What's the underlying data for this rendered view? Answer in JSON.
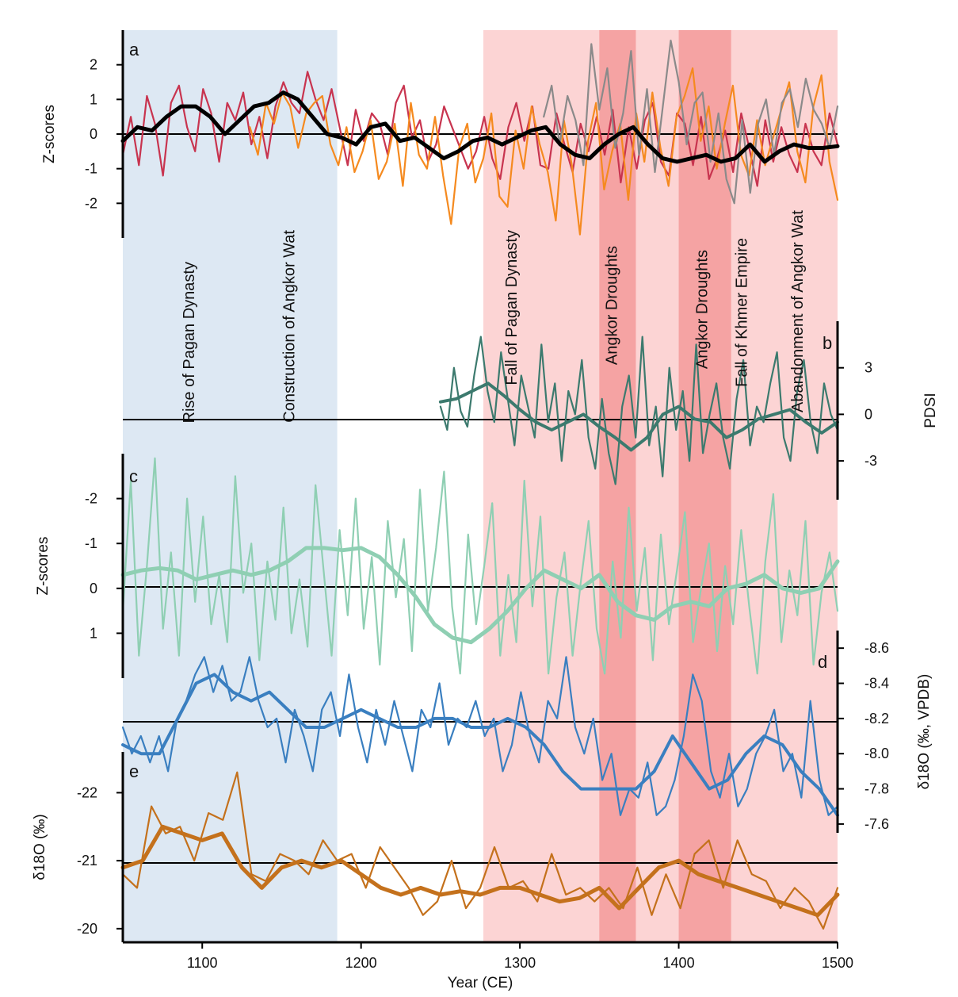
{
  "chart_data": {
    "type": "line",
    "x_axis": {
      "label": "Year (CE)",
      "range": [
        1050,
        1500
      ],
      "ticks": [
        1100,
        1200,
        1300,
        1400,
        1500
      ]
    },
    "shaded_periods": [
      {
        "start": 1050,
        "end": 1185,
        "color": "#dde8f3"
      },
      {
        "start": 1277,
        "end": 1500,
        "color": "#fcd4d4"
      },
      {
        "start": 1350,
        "end": 1373,
        "color": "#f5a3a3"
      },
      {
        "start": 1400,
        "end": 1433,
        "color": "#f5a3a3"
      }
    ],
    "events": [
      {
        "label": "Rise of Pagan Dynasty",
        "year": 1095
      },
      {
        "label": "Construction of Angkor Wat",
        "year": 1158
      },
      {
        "label": "Fall of Pagan Dynasty",
        "year": 1298
      },
      {
        "label": "Angkor Droughts",
        "year": 1361
      },
      {
        "label": "Angkor Droughts",
        "year": 1418
      },
      {
        "label": "Fall of Khmer Empire",
        "year": 1443
      },
      {
        "label": "Abandonment of Angkor Wat",
        "year": 1478
      }
    ],
    "panels": [
      {
        "letter": "a",
        "ylabel": "Z-scores",
        "ticks": [
          2,
          1,
          0,
          -1,
          -2
        ],
        "ylim": [
          -3,
          3
        ],
        "axis_side": "left",
        "series": [
          {
            "color": "#c8344f",
            "start": 1050,
            "end": 1500,
            "values": [
              -0.6,
              0.5,
              -0.9,
              1.1,
              0.3,
              -1.2,
              0.9,
              1.4,
              0.2,
              -0.5,
              1.3,
              0.6,
              -0.8,
              0.9,
              0.4,
              1.2,
              -0.3,
              0.5,
              -0.7,
              0.8,
              1.5,
              0.9,
              0.6,
              1.8,
              1.0,
              0.4,
              1.3,
              0.2,
              -0.9,
              0.7,
              -0.2,
              0.6,
              0.3,
              -0.6,
              0.9,
              1.4,
              -0.1,
              0.4,
              -0.8,
              -0.3,
              0.8,
              0.2,
              -0.4,
              -1.0,
              -0.5,
              0.5,
              -0.7,
              -1.3,
              0.2,
              0.9,
              -0.2,
              0.8,
              -0.9,
              -1.0,
              0.6,
              -0.3,
              -1.1,
              0.3,
              -0.5,
              0.5,
              -0.6,
              0.7,
              -1.4,
              0.2,
              -1.0,
              0.4,
              0.9,
              -0.8,
              -1.2,
              0.6,
              0.3,
              -0.9,
              0.5,
              -1.3,
              -0.7,
              0.1,
              -1.1,
              0.6,
              -0.4,
              -1.5,
              0.4,
              -0.8,
              0.2,
              -0.6,
              -1.1,
              0.3,
              -0.5,
              -0.9,
              0.6,
              -0.3
            ]
          },
          {
            "color": "#f58a1f",
            "start": 1130,
            "end": 1500,
            "values": [
              0.2,
              -0.6,
              0.9,
              0.3,
              1.2,
              0.8,
              -0.4,
              0.6,
              0.9,
              1.1,
              -0.3,
              -0.9,
              0.2,
              -1.1,
              -0.5,
              0.4,
              -1.3,
              -0.8,
              0.3,
              -1.5,
              0.9,
              -0.6,
              -1.0,
              0.5,
              -1.2,
              -2.6,
              -0.4,
              0.3,
              -1.4,
              -0.7,
              0.6,
              -1.8,
              -2.1,
              0.1,
              -1.0,
              0.8,
              -0.3,
              -1.1,
              -2.5,
              0.4,
              -0.9,
              -2.9,
              -0.2,
              0.9,
              -1.6,
              -0.5,
              0.3,
              -1.9,
              0.6,
              -0.8,
              1.2,
              -0.4,
              -1.5,
              0.5,
              1.1,
              1.9,
              -0.2,
              0.8,
              -1.0,
              0.3,
              1.4,
              -0.6,
              -1.2,
              0.4,
              -0.9,
              -0.1,
              0.7,
              1.5,
              -0.5,
              -1.4,
              0.8,
              1.7,
              -0.8,
              -1.9
            ]
          },
          {
            "color": "#8a8a8a",
            "start": 1315,
            "end": 1500,
            "values": [
              0.5,
              1.4,
              -0.3,
              1.1,
              0.4,
              -0.9,
              2.6,
              0.7,
              1.9,
              -0.4,
              0.6,
              2.4,
              -0.6,
              1.3,
              -1.1,
              0.8,
              2.7,
              1.5,
              -0.3,
              0.9,
              1.2,
              -0.8,
              0.6,
              -1.3,
              -2.0,
              0.4,
              -1.7,
              0.3,
              1.0,
              -0.6,
              0.9,
              1.3,
              0.2,
              1.6,
              0.7,
              0.3,
              -0.4,
              0.8
            ]
          },
          {
            "color": "#000000",
            "start": 1050,
            "end": 1500,
            "width": 5,
            "values": [
              -0.2,
              0.2,
              0.1,
              0.5,
              0.8,
              0.8,
              0.5,
              0.0,
              0.4,
              0.8,
              0.9,
              1.2,
              1.0,
              0.5,
              0.0,
              -0.1,
              -0.3,
              0.2,
              0.3,
              -0.2,
              -0.1,
              -0.4,
              -0.7,
              -0.5,
              -0.2,
              -0.1,
              -0.3,
              -0.1,
              0.1,
              0.2,
              -0.3,
              -0.6,
              -0.7,
              -0.3,
              0.0,
              0.2,
              -0.3,
              -0.7,
              -0.8,
              -0.7,
              -0.6,
              -0.8,
              -0.7,
              -0.3,
              -0.8,
              -0.5,
              -0.3,
              -0.4,
              -0.4,
              -0.35
            ]
          }
        ]
      },
      {
        "letter": "b",
        "ylabel": "PDSI",
        "ticks": [
          3,
          0,
          -3
        ],
        "ylim": [
          -5.5,
          6
        ],
        "axis_side": "right",
        "series": [
          {
            "color": "#3c7a6e",
            "start": 1250,
            "end": 1500,
            "values": [
              0.5,
              -1.0,
              3.0,
              0.2,
              -0.8,
              2.5,
              5.0,
              1.5,
              -0.5,
              4.0,
              1.0,
              -2.0,
              2.5,
              0.5,
              -1.5,
              4.5,
              -0.5,
              2.0,
              -3.0,
              1.5,
              0.0,
              3.5,
              -1.5,
              -3.5,
              1.0,
              -2.5,
              -4.5,
              0.5,
              2.5,
              -1.5,
              5.0,
              -2.0,
              0.5,
              -4.0,
              3.0,
              -1.0,
              1.5,
              -3.0,
              4.5,
              -2.5,
              0.0,
              2.0,
              -1.5,
              -3.5,
              1.0,
              3.5,
              -2.0,
              0.5,
              -0.5,
              2.0,
              4.0,
              -1.5,
              -3.0,
              1.5,
              3.5,
              -0.5,
              -2.5,
              2.0,
              0.0,
              -1.0
            ]
          },
          {
            "color": "#3c7a6e",
            "start": 1250,
            "end": 1500,
            "width": 4,
            "values": [
              0.8,
              1.0,
              1.5,
              2.0,
              1.2,
              0.3,
              -0.5,
              -1.0,
              -0.5,
              0.0,
              -0.8,
              -1.5,
              -2.3,
              -1.5,
              0.0,
              0.5,
              -0.3,
              -0.5,
              -1.5,
              -1.0,
              -0.3,
              0.0,
              0.3,
              -0.5,
              -1.2,
              -0.5
            ]
          }
        ]
      },
      {
        "letter": "c",
        "ylabel": "Z-scores",
        "ticks": [
          -2,
          -1,
          0,
          1
        ],
        "ylim": [
          -3,
          2
        ],
        "inverted": true,
        "axis_side": "left",
        "series": [
          {
            "color": "#8fcfb3",
            "start": 1050,
            "end": 1500,
            "values": [
              0.5,
              -2.4,
              1.5,
              -0.5,
              -2.9,
              0.9,
              -0.8,
              1.5,
              -2.0,
              0.3,
              -1.6,
              0.8,
              -0.3,
              1.2,
              -2.5,
              0.1,
              -1.0,
              1.6,
              -0.6,
              0.7,
              -1.8,
              1.0,
              -0.2,
              1.3,
              -2.3,
              -0.4,
              1.5,
              -1.3,
              0.6,
              -2.0,
              0.9,
              -0.7,
              1.7,
              -1.5,
              0.2,
              -1.1,
              1.4,
              -2.2,
              0.5,
              -0.9,
              -2.6,
              0.4,
              1.9,
              -1.2,
              0.8,
              -0.5,
              -1.9,
              1.5,
              -0.3,
              1.2,
              -2.4,
              0.4,
              -1.6,
              1.9,
              0.2,
              -0.8,
              1.5,
              -0.1,
              -1.5,
              0.9,
              1.9,
              -0.6,
              1.1,
              -1.8,
              0.5,
              -0.9,
              1.6,
              -1.2,
              0.8,
              -0.4,
              -1.7,
              1.2,
              0.0,
              -1.0,
              1.4,
              -0.5,
              0.8,
              -1.3,
              0.4,
              1.9,
              -0.6,
              -2.1,
              1.2,
              -0.4,
              0.6,
              -1.5,
              1.7,
              0.1,
              -0.8,
              0.5
            ]
          },
          {
            "color": "#8fcfb3",
            "start": 1050,
            "end": 1500,
            "width": 5,
            "values": [
              -0.3,
              -0.4,
              -0.45,
              -0.4,
              -0.2,
              -0.3,
              -0.4,
              -0.3,
              -0.4,
              -0.6,
              -0.9,
              -0.9,
              -0.85,
              -0.9,
              -0.7,
              -0.3,
              0.2,
              0.8,
              1.1,
              1.2,
              0.9,
              0.5,
              0.0,
              -0.4,
              -0.2,
              0.0,
              -0.3,
              0.3,
              0.6,
              0.7,
              0.4,
              0.3,
              0.4,
              0.0,
              -0.1,
              -0.3,
              0.0,
              0.1,
              0.0,
              -0.6
            ]
          }
        ]
      },
      {
        "letter": "d",
        "ylabel": "δ18O (‰, VPDB)",
        "ticks": [
          -8.6,
          -8.4,
          -8.2,
          -8.0,
          -7.8,
          -7.6
        ],
        "ylim": [
          -8.7,
          -7.55
        ],
        "inverted": true,
        "axis_side": "right",
        "series": [
          {
            "color": "#3a7fc0",
            "start": 1050,
            "end": 1500,
            "values": [
              -8.15,
              -8.0,
              -8.1,
              -7.95,
              -8.1,
              -7.9,
              -8.2,
              -8.3,
              -8.45,
              -8.55,
              -8.35,
              -8.5,
              -8.3,
              -8.35,
              -8.55,
              -8.3,
              -8.15,
              -8.2,
              -7.95,
              -8.25,
              -8.1,
              -7.9,
              -8.25,
              -8.35,
              -8.1,
              -8.45,
              -8.15,
              -7.95,
              -8.25,
              -8.05,
              -8.3,
              -8.1,
              -7.9,
              -8.25,
              -8.15,
              -8.4,
              -8.05,
              -8.2,
              -8.15,
              -8.3,
              -8.1,
              -8.2,
              -7.9,
              -8.05,
              -8.35,
              -8.1,
              -7.95,
              -8.3,
              -8.2,
              -8.55,
              -8.15,
              -8.0,
              -8.2,
              -7.85,
              -8.0,
              -7.65,
              -7.8,
              -7.75,
              -7.95,
              -7.65,
              -7.7,
              -7.85,
              -8.1,
              -8.45,
              -8.3,
              -7.9,
              -7.75,
              -8.0,
              -7.7,
              -7.8,
              -8.0,
              -8.1,
              -8.25,
              -7.9,
              -8.0,
              -7.75,
              -8.3,
              -7.85,
              -7.65,
              -7.7
            ]
          },
          {
            "color": "#3a7fc0",
            "start": 1050,
            "end": 1500,
            "width": 4,
            "values": [
              -8.05,
              -8.0,
              -8.0,
              -8.2,
              -8.4,
              -8.45,
              -8.35,
              -8.3,
              -8.35,
              -8.25,
              -8.15,
              -8.15,
              -8.2,
              -8.25,
              -8.2,
              -8.15,
              -8.15,
              -8.2,
              -8.2,
              -8.15,
              -8.15,
              -8.2,
              -8.15,
              -8.05,
              -7.9,
              -7.8,
              -7.8,
              -7.8,
              -7.8,
              -7.9,
              -8.1,
              -7.95,
              -7.8,
              -7.85,
              -8.0,
              -8.1,
              -8.05,
              -7.9,
              -7.8,
              -7.65
            ]
          }
        ]
      },
      {
        "letter": "e",
        "ylabel": "δ18O (‰)",
        "ticks": [
          -22,
          -21,
          -20
        ],
        "ylim": [
          -22.6,
          -19.8
        ],
        "inverted": true,
        "axis_side": "left",
        "series": [
          {
            "color": "#c4711c",
            "start": 1050,
            "end": 1500,
            "values": [
              -20.8,
              -20.6,
              -21.8,
              -21.4,
              -21.5,
              -21.0,
              -21.7,
              -21.6,
              -22.3,
              -20.8,
              -20.7,
              -21.1,
              -21.0,
              -20.8,
              -21.3,
              -21.0,
              -21.1,
              -20.6,
              -21.2,
              -20.9,
              -20.6,
              -20.2,
              -20.4,
              -21.0,
              -20.3,
              -20.6,
              -21.2,
              -20.6,
              -20.7,
              -20.4,
              -21.1,
              -20.5,
              -20.6,
              -20.4,
              -20.6,
              -20.3,
              -20.9,
              -20.2,
              -20.8,
              -20.3,
              -21.1,
              -21.3,
              -20.6,
              -21.3,
              -20.8,
              -20.7,
              -20.3,
              -20.6,
              -20.4,
              -20.0,
              -20.6
            ]
          },
          {
            "color": "#c4711c",
            "start": 1050,
            "end": 1500,
            "width": 5,
            "values": [
              -20.9,
              -21.0,
              -21.5,
              -21.4,
              -21.3,
              -21.4,
              -20.9,
              -20.6,
              -20.9,
              -21.0,
              -20.9,
              -21.0,
              -20.8,
              -20.6,
              -20.5,
              -20.6,
              -20.5,
              -20.55,
              -20.5,
              -20.6,
              -20.6,
              -20.5,
              -20.4,
              -20.45,
              -20.6,
              -20.3,
              -20.6,
              -20.9,
              -21.0,
              -20.8,
              -20.7,
              -20.6,
              -20.5,
              -20.4,
              -20.3,
              -20.2,
              -20.5
            ]
          }
        ]
      }
    ]
  }
}
